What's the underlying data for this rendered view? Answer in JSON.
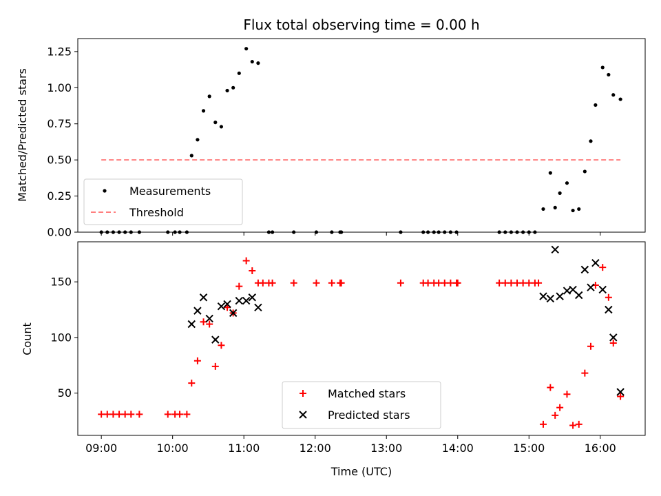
{
  "chart_data": [
    {
      "type": "scatter",
      "title": "Flux total observing time = 0.00 h",
      "xlabel": "",
      "ylabel": "Matched/Predicted stars",
      "xlim_hours": [
        8.67,
        16.63
      ],
      "ylim": [
        0,
        1.34
      ],
      "yticks": [
        "0.00",
        "0.25",
        "0.50",
        "0.75",
        "1.00",
        "1.25"
      ],
      "ytick_values": [
        0,
        0.25,
        0.5,
        0.75,
        1.0,
        1.25
      ],
      "legend_position": "lower-left",
      "series": [
        {
          "name": "Measurements",
          "marker": "dot",
          "color": "#000000",
          "points": [
            [
              "09:00",
              0
            ],
            [
              "09:05",
              0
            ],
            [
              "09:10",
              0
            ],
            [
              "09:15",
              0
            ],
            [
              "09:20",
              0
            ],
            [
              "09:25",
              0
            ],
            [
              "09:32",
              0
            ],
            [
              "09:56",
              0
            ],
            [
              "10:02",
              0
            ],
            [
              "10:06",
              0
            ],
            [
              "10:12",
              0
            ],
            [
              "10:16",
              0.53
            ],
            [
              "10:21",
              0.64
            ],
            [
              "10:26",
              0.84
            ],
            [
              "10:31",
              0.94
            ],
            [
              "10:36",
              0.76
            ],
            [
              "10:41",
              0.73
            ],
            [
              "10:46",
              0.98
            ],
            [
              "10:51",
              1.0
            ],
            [
              "10:56",
              1.1
            ],
            [
              "11:02",
              1.27
            ],
            [
              "11:07",
              1.18
            ],
            [
              "11:12",
              1.17
            ],
            [
              "11:21",
              0
            ],
            [
              "11:24",
              0
            ],
            [
              "11:42",
              0
            ],
            [
              "12:01",
              0
            ],
            [
              "12:14",
              0
            ],
            [
              "12:21",
              0
            ],
            [
              "12:22",
              0
            ],
            [
              "13:12",
              0
            ],
            [
              "13:31",
              0
            ],
            [
              "13:35",
              0
            ],
            [
              "13:40",
              0
            ],
            [
              "13:44",
              0
            ],
            [
              "13:49",
              0
            ],
            [
              "13:54",
              0
            ],
            [
              "13:59",
              0
            ],
            [
              "14:35",
              0
            ],
            [
              "14:40",
              0
            ],
            [
              "14:45",
              0
            ],
            [
              "14:50",
              0
            ],
            [
              "14:55",
              0
            ],
            [
              "15:00",
              0
            ],
            [
              "15:05",
              0
            ],
            [
              "15:12",
              0.16
            ],
            [
              "15:18",
              0.41
            ],
            [
              "15:22",
              0.17
            ],
            [
              "15:26",
              0.27
            ],
            [
              "15:32",
              0.34
            ],
            [
              "15:37",
              0.15
            ],
            [
              "15:42",
              0.16
            ],
            [
              "15:47",
              0.42
            ],
            [
              "15:52",
              0.63
            ],
            [
              "15:56",
              0.88
            ],
            [
              "16:02",
              1.14
            ],
            [
              "16:07",
              1.09
            ],
            [
              "16:11",
              0.95
            ],
            [
              "16:17",
              0.92
            ]
          ]
        },
        {
          "name": "Threshold",
          "type": "line",
          "style": "dashed",
          "color": "#ff7f7f",
          "x": [
            "09:00",
            "16:17"
          ],
          "y": [
            0.5,
            0.5
          ]
        }
      ]
    },
    {
      "type": "scatter",
      "title": "",
      "xlabel": "Time (UTC)",
      "ylabel": "Count",
      "xlim_hours": [
        8.67,
        16.63
      ],
      "ylim": [
        12,
        186
      ],
      "yticks": [
        "50",
        "100",
        "150"
      ],
      "ytick_values": [
        50,
        100,
        150
      ],
      "xticks": [
        "09:00",
        "10:00",
        "11:00",
        "12:00",
        "13:00",
        "14:00",
        "15:00",
        "16:00"
      ],
      "xtick_values": [
        9,
        10,
        11,
        12,
        13,
        14,
        15,
        16
      ],
      "legend_position": "lower-center",
      "series": [
        {
          "name": "Matched stars",
          "marker": "plus",
          "color": "#ff0000",
          "points": [
            [
              "09:00",
              31
            ],
            [
              "09:05",
              31
            ],
            [
              "09:10",
              31
            ],
            [
              "09:15",
              31
            ],
            [
              "09:20",
              31
            ],
            [
              "09:25",
              31
            ],
            [
              "09:32",
              31
            ],
            [
              "09:56",
              31
            ],
            [
              "10:02",
              31
            ],
            [
              "10:06",
              31
            ],
            [
              "10:12",
              31
            ],
            [
              "10:16",
              59
            ],
            [
              "10:21",
              79
            ],
            [
              "10:26",
              114
            ],
            [
              "10:31",
              112
            ],
            [
              "10:36",
              74
            ],
            [
              "10:41",
              93
            ],
            [
              "10:46",
              127
            ],
            [
              "10:51",
              122
            ],
            [
              "10:56",
              146
            ],
            [
              "11:02",
              169
            ],
            [
              "11:07",
              160
            ],
            [
              "11:12",
              149
            ],
            [
              "11:16",
              149
            ],
            [
              "11:21",
              149
            ],
            [
              "11:24",
              149
            ],
            [
              "11:42",
              149
            ],
            [
              "12:01",
              149
            ],
            [
              "12:14",
              149
            ],
            [
              "12:21",
              149
            ],
            [
              "12:22",
              149
            ],
            [
              "13:12",
              149
            ],
            [
              "13:31",
              149
            ],
            [
              "13:35",
              149
            ],
            [
              "13:40",
              149
            ],
            [
              "13:44",
              149
            ],
            [
              "13:49",
              149
            ],
            [
              "13:54",
              149
            ],
            [
              "13:59",
              149
            ],
            [
              "14:00",
              149
            ],
            [
              "14:35",
              149
            ],
            [
              "14:40",
              149
            ],
            [
              "14:45",
              149
            ],
            [
              "14:50",
              149
            ],
            [
              "14:55",
              149
            ],
            [
              "15:00",
              149
            ],
            [
              "15:05",
              149
            ],
            [
              "15:08",
              149
            ],
            [
              "15:12",
              22
            ],
            [
              "15:18",
              55
            ],
            [
              "15:22",
              30
            ],
            [
              "15:26",
              37
            ],
            [
              "15:32",
              49
            ],
            [
              "15:37",
              21
            ],
            [
              "15:42",
              22
            ],
            [
              "15:47",
              68
            ],
            [
              "15:52",
              92
            ],
            [
              "15:56",
              147
            ],
            [
              "16:02",
              163
            ],
            [
              "16:07",
              136
            ],
            [
              "16:11",
              95
            ],
            [
              "16:17",
              47
            ]
          ]
        },
        {
          "name": "Predicted stars",
          "marker": "x",
          "color": "#000000",
          "points": [
            [
              "10:16",
              112
            ],
            [
              "10:21",
              124
            ],
            [
              "10:26",
              136
            ],
            [
              "10:31",
              117
            ],
            [
              "10:36",
              98
            ],
            [
              "10:41",
              128
            ],
            [
              "10:46",
              130
            ],
            [
              "10:51",
              122
            ],
            [
              "10:56",
              133
            ],
            [
              "11:02",
              133
            ],
            [
              "11:07",
              136
            ],
            [
              "11:12",
              127
            ],
            [
              "15:12",
              137
            ],
            [
              "15:18",
              135
            ],
            [
              "15:22",
              179
            ],
            [
              "15:26",
              137
            ],
            [
              "15:32",
              142
            ],
            [
              "15:37",
              143
            ],
            [
              "15:42",
              138
            ],
            [
              "15:47",
              161
            ],
            [
              "15:52",
              145
            ],
            [
              "15:56",
              167
            ],
            [
              "16:02",
              143
            ],
            [
              "16:07",
              125
            ],
            [
              "16:11",
              100
            ],
            [
              "16:17",
              51
            ]
          ]
        }
      ]
    }
  ],
  "colors": {
    "threshold": "#ff7f7f",
    "matched": "#ff0000",
    "predicted": "#000000",
    "measurements": "#000000"
  }
}
